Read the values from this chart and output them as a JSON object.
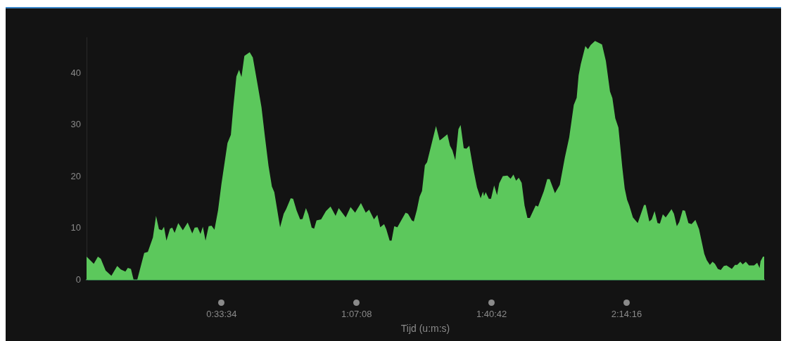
{
  "chart_data": {
    "type": "area",
    "xlabel": "Tijd (u:m:s)",
    "xlim": [
      0,
      2.808
    ],
    "ylim": [
      0,
      47
    ],
    "xticks": [
      {
        "value": 0.5594,
        "label": "0:33:34"
      },
      {
        "value": 1.1189,
        "label": "1:07:08"
      },
      {
        "value": 1.6783,
        "label": "1:40:42"
      },
      {
        "value": 2.2378,
        "label": "2:14:16"
      }
    ],
    "yticks": [
      0,
      10,
      20,
      30,
      40
    ],
    "grid": false,
    "legend": false,
    "series": [
      {
        "color": "#5cc85c",
        "x": [
          0,
          0.03,
          0.047,
          0.059,
          0.079,
          0.103,
          0.127,
          0.142,
          0.161,
          0.171,
          0.184,
          0.195,
          0.21,
          0.239,
          0.254,
          0.275,
          0.288,
          0.3,
          0.312,
          0.321,
          0.331,
          0.346,
          0.355,
          0.365,
          0.38,
          0.399,
          0.419,
          0.438,
          0.448,
          0.46,
          0.472,
          0.482,
          0.493,
          0.506,
          0.518,
          0.53,
          0.545,
          0.559,
          0.584,
          0.598,
          0.608,
          0.621,
          0.632,
          0.642,
          0.654,
          0.676,
          0.689,
          0.71,
          0.725,
          0.739,
          0.754,
          0.768,
          0.778,
          0.802,
          0.817,
          0.827,
          0.846,
          0.856,
          0.87,
          0.885,
          0.895,
          0.909,
          0.919,
          0.933,
          0.943,
          0.953,
          0.972,
          0.992,
          1.011,
          1.032,
          1.045,
          1.074,
          1.094,
          1.113,
          1.137,
          1.157,
          1.171,
          1.191,
          1.205,
          1.217,
          1.233,
          1.242,
          1.256,
          1.264,
          1.275,
          1.288,
          1.322,
          1.332,
          1.348,
          1.356,
          1.369,
          1.38,
          1.39,
          1.402,
          1.411,
          1.448,
          1.463,
          1.472,
          1.495,
          1.506,
          1.516,
          1.528,
          1.541,
          1.55,
          1.563,
          1.574,
          1.586,
          1.603,
          1.618,
          1.633,
          1.643,
          1.647,
          1.654,
          1.667,
          1.676,
          1.689,
          1.701,
          1.71,
          1.725,
          1.744,
          1.757,
          1.769,
          1.78,
          1.791,
          1.803,
          1.815,
          1.827,
          1.837,
          1.861,
          1.871,
          1.895,
          1.909,
          1.919,
          1.941,
          1.961,
          1.982,
          2.0,
          2.019,
          2.031,
          2.039,
          2.048,
          2.067,
          2.078,
          2.089,
          2.107,
          2.136,
          2.152,
          2.169,
          2.179,
          2.191,
          2.204,
          2.22,
          2.23,
          2.24,
          2.249,
          2.264,
          2.284,
          2.31,
          2.317,
          2.332,
          2.342,
          2.354,
          2.366,
          2.376,
          2.388,
          2.4,
          2.424,
          2.434,
          2.446,
          2.456,
          2.47,
          2.48,
          2.494,
          2.507,
          2.523,
          2.538,
          2.56,
          2.57,
          2.583,
          2.594,
          2.604,
          2.616,
          2.628,
          2.641,
          2.652,
          2.674,
          2.687,
          2.696,
          2.709,
          2.719,
          2.732,
          2.745,
          2.766,
          2.779,
          2.789,
          2.793,
          2.803,
          2.808
        ],
        "values": [
          4.5,
          3.1,
          4.5,
          4.1,
          1.8,
          0.8,
          2.7,
          2.0,
          1.6,
          2.3,
          2.1,
          0,
          0,
          5.2,
          5.4,
          8.2,
          12.4,
          9.8,
          9.6,
          10.3,
          7.6,
          9.9,
          10.1,
          9.1,
          11.0,
          9.6,
          11.1,
          9.0,
          10.1,
          10.2,
          8.9,
          10.3,
          7.6,
          10.4,
          10.5,
          9.7,
          13.5,
          18.6,
          26.5,
          28.1,
          33.4,
          39.4,
          40.7,
          39.3,
          43.4,
          44.1,
          43.1,
          37.5,
          33.4,
          27.8,
          22.1,
          18.1,
          17.0,
          10.2,
          12.8,
          13.7,
          15.8,
          15.7,
          13.5,
          11.7,
          11.8,
          13.9,
          12.7,
          10.1,
          9.9,
          11.5,
          11.7,
          13.3,
          14.2,
          12.4,
          13.9,
          12.1,
          14.1,
          13.0,
          14.9,
          13.0,
          13.6,
          11.7,
          12.6,
          10.2,
          10.8,
          9.8,
          7.6,
          7.6,
          10.4,
          10.2,
          13.0,
          12.8,
          11.5,
          11.3,
          13.6,
          16.1,
          17.2,
          22.2,
          22.8,
          29.8,
          27.0,
          27.3,
          28.2,
          26.0,
          25.1,
          23.2,
          29.2,
          30.0,
          25.5,
          25.4,
          26.0,
          21.4,
          17.9,
          15.8,
          17.1,
          16.2,
          17.0,
          15.7,
          15.7,
          18.3,
          16.4,
          18.7,
          20.1,
          20.2,
          19.6,
          20.4,
          19.2,
          19.8,
          18.8,
          14.4,
          12.0,
          12.0,
          14.4,
          14.2,
          17.2,
          19.5,
          19.5,
          16.8,
          18.4,
          23.7,
          27.6,
          33.9,
          35.3,
          39.6,
          41.8,
          45.3,
          44.7,
          45.5,
          46.3,
          45.6,
          42.4,
          36.5,
          35.2,
          31.3,
          29.5,
          21.8,
          17.7,
          15.5,
          14.4,
          12.1,
          11.0,
          14.5,
          14.5,
          11.3,
          11.7,
          13.3,
          11.0,
          10.9,
          12.7,
          12.1,
          13.7,
          12.8,
          10.4,
          11.2,
          13.5,
          13.4,
          11.0,
          10.8,
          11.6,
          9.8,
          5.0,
          3.8,
          2.9,
          3.5,
          3.1,
          2.1,
          1.9,
          2.7,
          2.8,
          2.1,
          2.9,
          2.9,
          3.5,
          3.0,
          3.5,
          2.8,
          2.8,
          3.3,
          2.3,
          3.6,
          4.5,
          4.5
        ]
      }
    ]
  }
}
